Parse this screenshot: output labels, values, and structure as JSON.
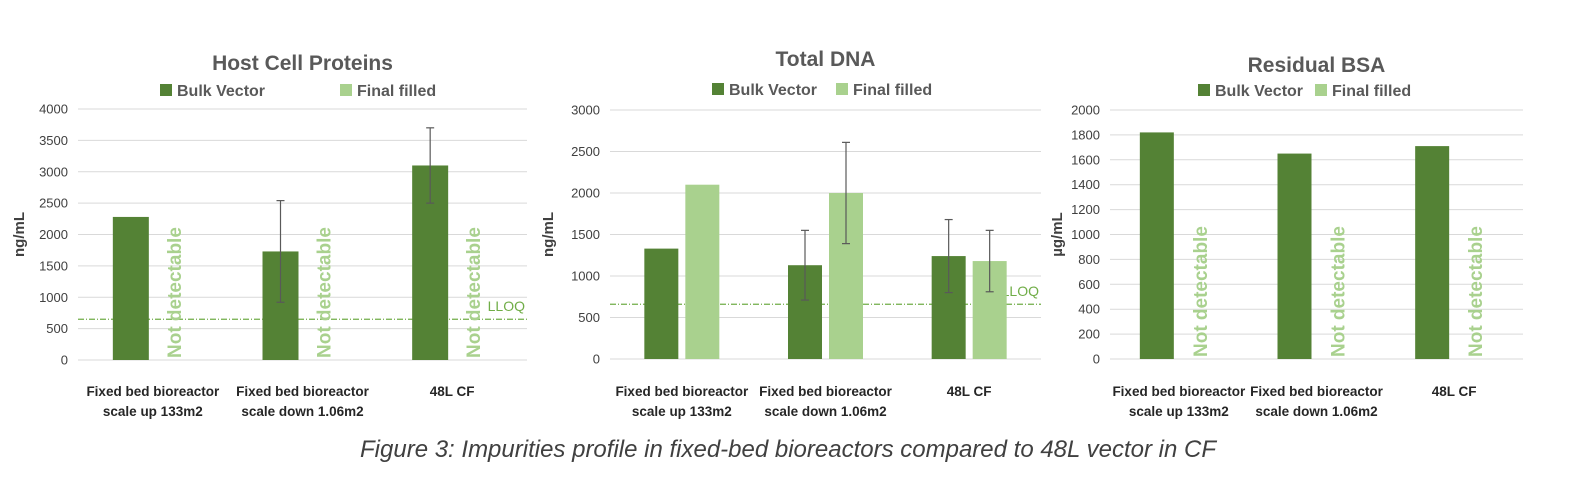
{
  "figure_caption": "Figure 3:  Impurities profile in fixed-bed bioreactors compared to 48L vector in CF",
  "colors": {
    "bulk": "#548235",
    "final": "#a9d18e",
    "grid": "#d9d9d9",
    "lloq": "#70ad47",
    "error": "#595959"
  },
  "not_detectable_label": "Not detectable",
  "chart_data": [
    {
      "type": "bar",
      "title": "Host Cell Proteins",
      "ylabel": "ng/mL",
      "ylim": [
        0,
        4000
      ],
      "yticks": [
        "0",
        "500",
        "1000",
        "1500",
        "2000",
        "2500",
        "3000",
        "3500",
        "4000"
      ],
      "categories": [
        [
          "Fixed bed bioreactor",
          "scale up 133m2"
        ],
        [
          "Fixed bed bioreactor",
          "scale down 1.06m2"
        ],
        [
          "48L CF"
        ]
      ],
      "series": [
        {
          "name": "Bulk Vector",
          "values": [
            2280,
            1730,
            3100
          ],
          "errors": [
            null,
            810,
            600
          ]
        },
        {
          "name": "Final filled",
          "values": [
            null,
            null,
            null
          ],
          "errors": [
            null,
            null,
            null
          ],
          "not_detectable": [
            true,
            true,
            true
          ]
        }
      ],
      "reference_line": {
        "label": "LLOQ",
        "value": 650
      },
      "legend": "top"
    },
    {
      "type": "bar",
      "title": "Total DNA",
      "ylabel": "ng/mL",
      "ylim": [
        0,
        3000
      ],
      "yticks": [
        "0",
        "500",
        "1000",
        "1500",
        "2000",
        "2500",
        "3000"
      ],
      "categories": [
        [
          "Fixed bed bioreactor",
          "scale up 133m2"
        ],
        [
          "Fixed bed bioreactor",
          "scale down 1.06m2"
        ],
        [
          "48L CF"
        ]
      ],
      "series": [
        {
          "name": "Bulk Vector",
          "values": [
            1330,
            1130,
            1240
          ],
          "errors": [
            null,
            420,
            440
          ]
        },
        {
          "name": "Final filled",
          "values": [
            2100,
            2000,
            1180
          ],
          "errors": [
            null,
            610,
            370
          ],
          "not_detectable": [
            false,
            false,
            false
          ]
        }
      ],
      "reference_line": {
        "label": "LLOQ",
        "value": 660
      },
      "legend": "top"
    },
    {
      "type": "bar",
      "title": "Residual BSA",
      "ylabel": "µg/mL",
      "ylim": [
        0,
        2000
      ],
      "yticks": [
        "0",
        "200",
        "400",
        "600",
        "800",
        "1000",
        "1200",
        "1400",
        "1600",
        "1800",
        "2000"
      ],
      "categories": [
        [
          "Fixed bed bioreactor",
          "scale up 133m2"
        ],
        [
          "Fixed bed bioreactor",
          "scale down 1.06m2"
        ],
        [
          "48L CF"
        ]
      ],
      "series": [
        {
          "name": "Bulk Vector",
          "values": [
            1820,
            1650,
            1710
          ],
          "errors": [
            null,
            null,
            null
          ]
        },
        {
          "name": "Final filled",
          "values": [
            null,
            null,
            null
          ],
          "errors": [
            null,
            null,
            null
          ],
          "not_detectable": [
            true,
            true,
            true
          ]
        }
      ],
      "reference_line": null,
      "legend": "top"
    }
  ]
}
